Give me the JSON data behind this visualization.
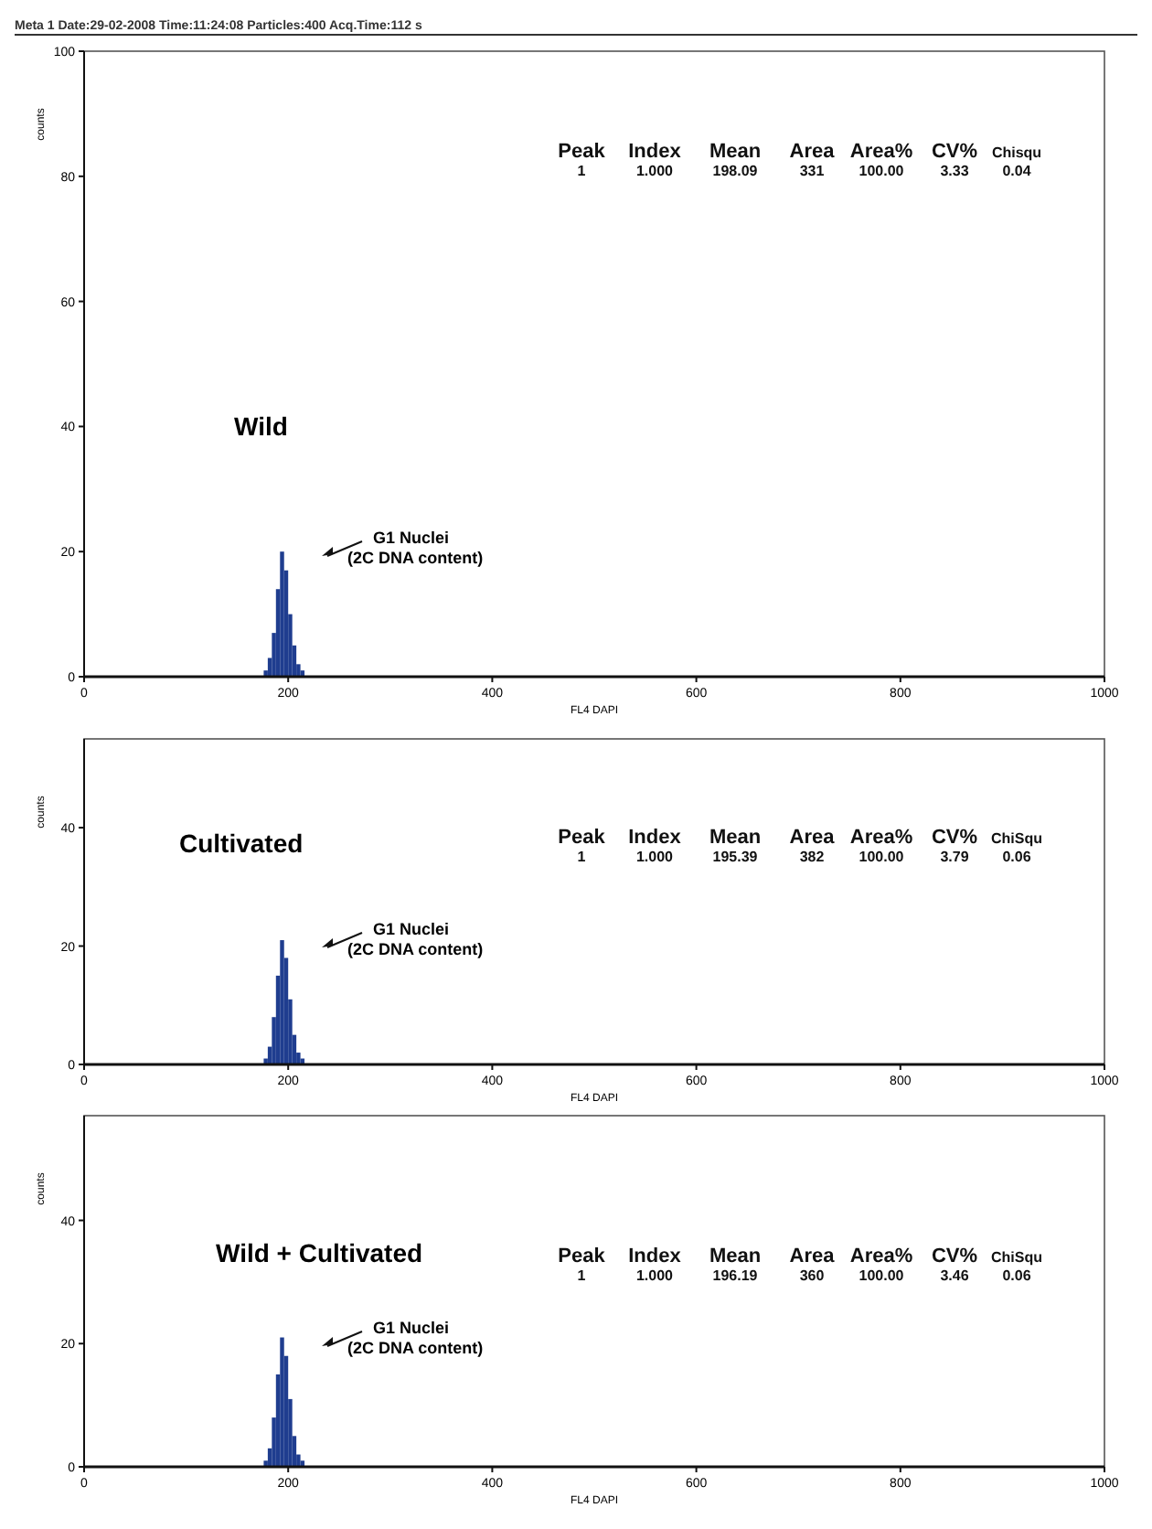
{
  "chart_data": [
    {
      "type": "histogram",
      "title": "Meta 1 Date:29-02-2008 Time:11:24:08 Particles:400 Acq.Time:112 s",
      "xlabel": "FL4 DAPI",
      "ylabel": "counts",
      "color": "#1f3d8f",
      "bins": [
        176,
        180,
        184,
        188,
        192,
        196,
        200,
        204,
        208,
        212,
        216
      ],
      "values": [
        1,
        3,
        7,
        14,
        20,
        17,
        10,
        5,
        2,
        1
      ],
      "xlim": [
        0,
        1000
      ],
      "xticks": [
        0,
        200,
        400,
        600,
        800,
        1000
      ],
      "ylim": [
        0,
        100
      ],
      "yticks": [
        0,
        20,
        40,
        60,
        80,
        100
      ],
      "annotations": [
        "Wild",
        "G1 Nuclei\n(2C DNA content)",
        "Peak",
        "Index",
        "Mean",
        "Area",
        "Area%",
        "CV%",
        "Chisqu",
        "1",
        "1.000",
        "198.09",
        "331",
        "100.00",
        "3.33",
        "0.04"
      ]
    },
    {
      "type": "histogram",
      "xlabel": "FL4 DAPI",
      "ylabel": "counts",
      "color": "#1f3d8f",
      "bins": [
        176,
        180,
        184,
        188,
        192,
        196,
        200,
        204,
        208,
        212,
        216
      ],
      "values": [
        1,
        3,
        8,
        15,
        21,
        18,
        11,
        5,
        2,
        1
      ],
      "xlim": [
        0,
        1000
      ],
      "xticks": [
        0,
        200,
        400,
        600,
        800,
        1000
      ],
      "ylim": [
        0,
        55
      ],
      "yticks": [
        0,
        20,
        40
      ],
      "annotations": [
        "Cultivated",
        "G1 Nuclei\n(2C DNA content)",
        "Peak",
        "Index",
        "Mean",
        "Area",
        "Area%",
        "CV%",
        "ChiSqu",
        "1",
        "1.000",
        "195.39",
        "382",
        "100.00",
        "3.79",
        "0.06"
      ]
    },
    {
      "type": "histogram",
      "xlabel": "FL4 DAPI",
      "ylabel": "counts",
      "color": "#1f3d8f",
      "bins": [
        176,
        180,
        184,
        188,
        192,
        196,
        200,
        204,
        208,
        212,
        216
      ],
      "values": [
        1,
        3,
        8,
        15,
        21,
        18,
        11,
        5,
        2,
        1
      ],
      "xlim": [
        0,
        1000
      ],
      "xticks": [
        0,
        200,
        400,
        600,
        800,
        1000
      ],
      "ylim": [
        0,
        57
      ],
      "yticks": [
        0,
        20,
        40
      ],
      "annotations": [
        "Wild + Cultivated",
        "G1 Nuclei\n(2C DNA content)",
        "Peak",
        "Index",
        "Mean",
        "Area",
        "Area%",
        "CV%",
        "ChiSqu",
        "1",
        "1.000",
        "196.19",
        "360",
        "100.00",
        "3.46",
        "0.06"
      ]
    }
  ]
}
